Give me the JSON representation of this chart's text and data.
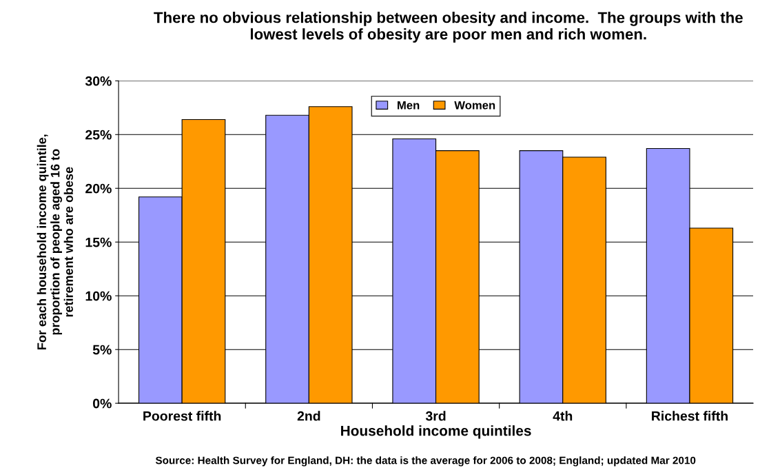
{
  "chart_data": {
    "type": "bar",
    "title": "There no obvious relationship between obesity and income.  The groups with the lowest levels of obesity are poor men and rich women.",
    "xlabel": "Household income quintiles",
    "ylabel": "For each household income quintile,\nproportion of people aged 16 to\nretirement who are obese",
    "categories": [
      "Poorest fifth",
      "2nd",
      "3rd",
      "4th",
      "Richest fifth"
    ],
    "series": [
      {
        "name": "Men",
        "color": "#9999ff",
        "values": [
          19.2,
          26.8,
          24.6,
          23.5,
          23.7
        ]
      },
      {
        "name": "Women",
        "color": "#ff9900",
        "values": [
          26.4,
          27.6,
          23.5,
          22.9,
          16.3
        ]
      }
    ],
    "ylim": [
      0,
      30
    ],
    "yticks": [
      {
        "value": 0,
        "label": "0%"
      },
      {
        "value": 5,
        "label": "5%"
      },
      {
        "value": 10,
        "label": "10%"
      },
      {
        "value": 15,
        "label": "15%"
      },
      {
        "value": 20,
        "label": "20%"
      },
      {
        "value": 25,
        "label": "25%"
      },
      {
        "value": 30,
        "label": "30%"
      }
    ],
    "grid": "y",
    "legend": "top",
    "annotations": [
      "Source: Health Survey for England, DH: the data is the average for 2006 to 2008; England; updated Mar 2010"
    ]
  }
}
